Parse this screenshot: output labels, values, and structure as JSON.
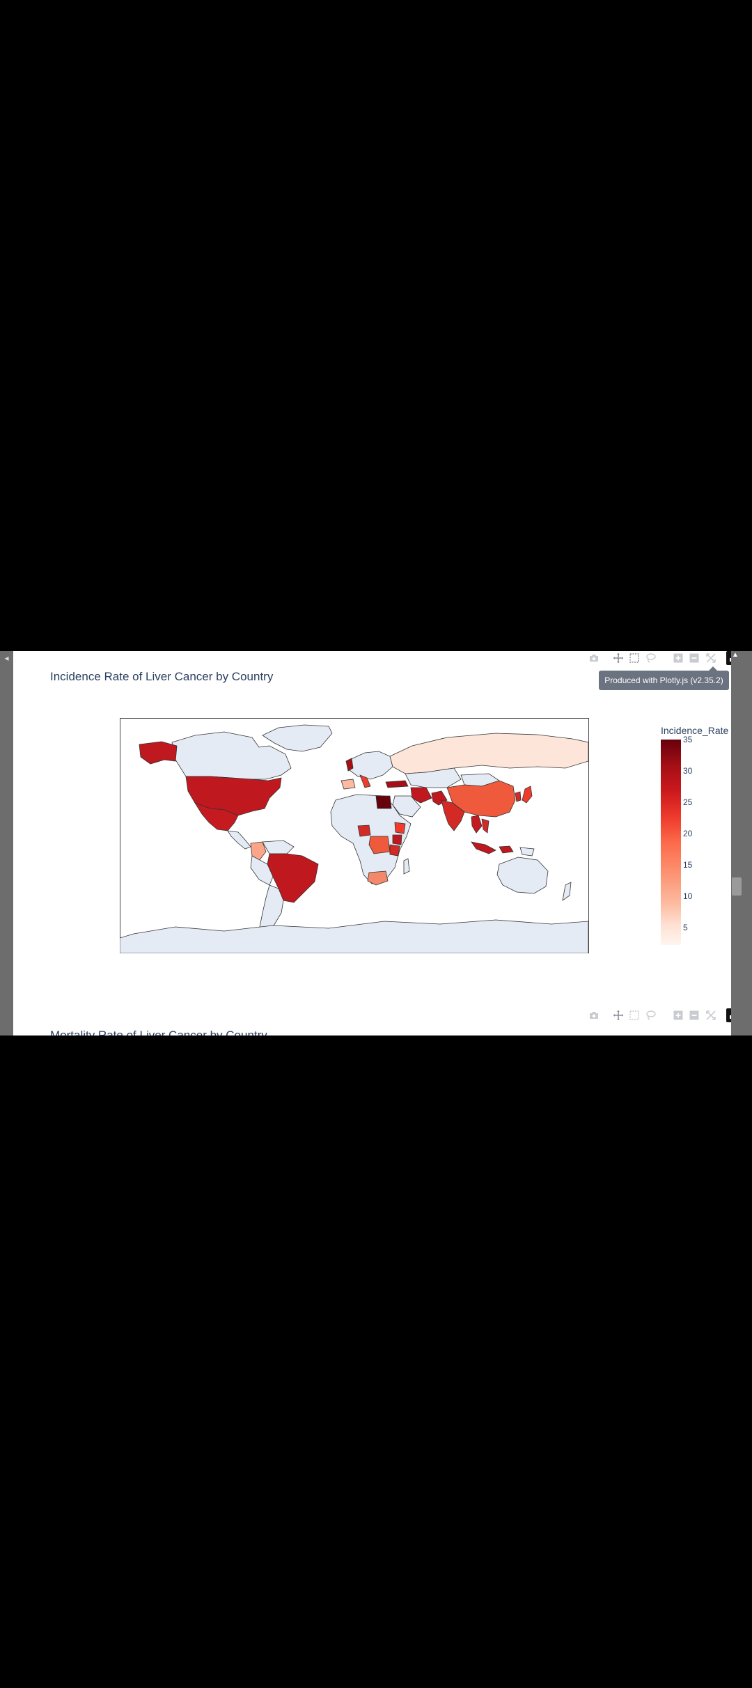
{
  "charts": [
    {
      "title": "Incidence Rate of Liver Cancer by Country",
      "tooltip": "Produced with Plotly.js (v2.35.2)",
      "colorbar": {
        "title": "Incidence_Rate",
        "ticks": [
          "35",
          "30",
          "25",
          "20",
          "15",
          "10",
          "5"
        ]
      }
    },
    {
      "title": "Mortality Rate of Liver Cancer by Country"
    }
  ],
  "modebar": {
    "icons": [
      "camera-icon",
      "pan-icon",
      "box-select-icon",
      "lasso-icon",
      "zoom-in-icon",
      "zoom-out-icon",
      "reset-icon",
      "plotly-logo-icon"
    ]
  },
  "chart_data": {
    "type": "choropleth",
    "title": "Incidence Rate of Liver Cancer by Country",
    "colorbar_title": "Incidence_Rate",
    "colorscale": "Reds",
    "colorbar_range": [
      0,
      35
    ],
    "colorbar_ticks": [
      5,
      10,
      15,
      20,
      25,
      30,
      35
    ],
    "countries": [
      "United States",
      "Mexico",
      "Brazil",
      "Colombia",
      "India",
      "China",
      "Russia",
      "Pakistan",
      "Egypt",
      "Turkey",
      "Italy",
      "Spain",
      "United Kingdom",
      "South Africa",
      "Kenya",
      "Ethiopia",
      "Nigeria",
      "DR Congo",
      "Thailand",
      "Vietnam",
      "Indonesia",
      "Japan",
      "South Korea",
      "Iran"
    ],
    "values": [
      28,
      27,
      28,
      15,
      25,
      21,
      3,
      27,
      35,
      33,
      21,
      14,
      30,
      16,
      27,
      22,
      25,
      21,
      26,
      25,
      28,
      21,
      23,
      27
    ],
    "projection": "equirectangular"
  }
}
